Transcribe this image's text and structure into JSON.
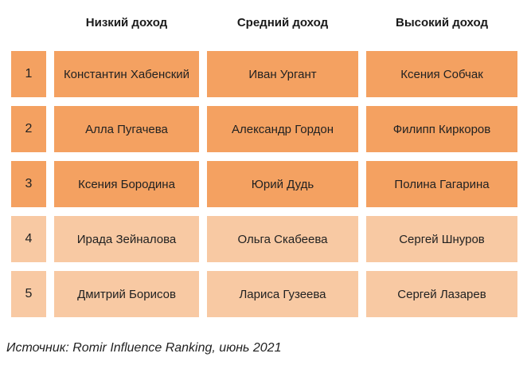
{
  "columns": [
    "Низкий доход",
    "Средний доход",
    "Высокий доход"
  ],
  "rows": [
    {
      "rank": "1",
      "low": "Константин Хабенский",
      "mid": "Иван Ургант",
      "high": "Ксения Собчак",
      "tone": "dark"
    },
    {
      "rank": "2",
      "low": "Алла Пугачева",
      "mid": "Александр Гордон",
      "high": "Филипп Киркоров",
      "tone": "dark"
    },
    {
      "rank": "3",
      "low": "Ксения Бородина",
      "mid": "Юрий Дудь",
      "high": "Полина Гагарина",
      "tone": "dark"
    },
    {
      "rank": "4",
      "low": "Ирада Зейналова",
      "mid": "Ольга Скабеева",
      "high": "Сергей Шнуров",
      "tone": "light"
    },
    {
      "rank": "5",
      "low": "Дмитрий Борисов",
      "mid": "Лариса Гузеева",
      "high": "Сергей Лазарев",
      "tone": "light"
    }
  ],
  "colors": {
    "dark_cell": "#f4a161",
    "light_cell": "#f8c9a3"
  },
  "source": "Источник: Romir Influence Ranking, июнь 2021"
}
